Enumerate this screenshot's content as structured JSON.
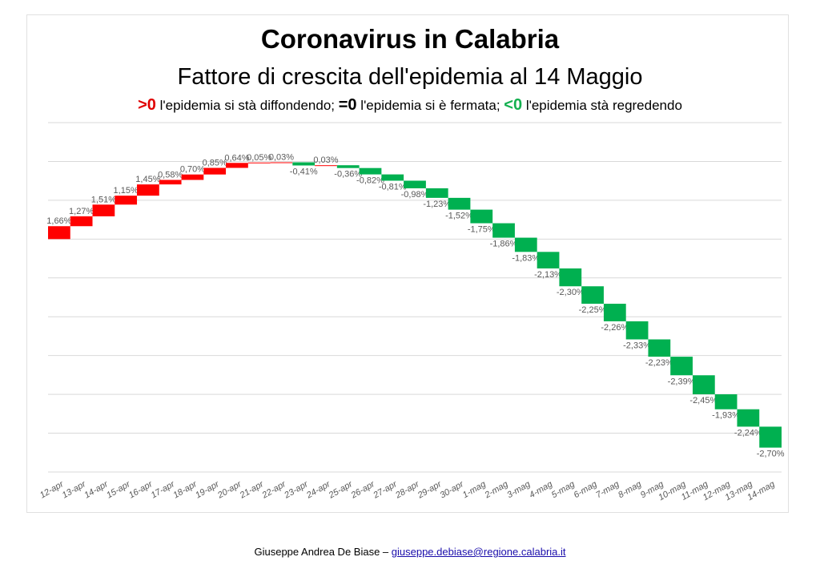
{
  "chart_data": {
    "type": "waterfall",
    "title": "Coronavirus in Calabria",
    "subtitle": "Fattore di crescita dell'epidemia al 14 Maggio",
    "legend": {
      "pos_sym": ">0",
      "pos_text": " l'epidemia si stà diffondendo; ",
      "zero_sym": "=0",
      "zero_text": " l'epidemia si è fermata; ",
      "neg_sym": "<0",
      "neg_text": " l'epidemia stà regredendo"
    },
    "categories": [
      "12-apr",
      "13-apr",
      "14-apr",
      "15-apr",
      "16-apr",
      "17-apr",
      "18-apr",
      "19-apr",
      "20-apr",
      "21-apr",
      "22-apr",
      "23-apr",
      "24-apr",
      "25-apr",
      "26-apr",
      "27-apr",
      "28-apr",
      "29-apr",
      "30-apr",
      "1-mag",
      "2-mag",
      "3-mag",
      "4-mag",
      "5-mag",
      "6-mag",
      "7-mag",
      "8-mag",
      "9-mag",
      "10-mag",
      "11-mag",
      "12-mag",
      "13-mag",
      "14-mag"
    ],
    "values": [
      1.66,
      1.27,
      1.51,
      1.15,
      1.45,
      0.58,
      0.7,
      0.85,
      0.64,
      0.05,
      0.03,
      -0.41,
      0.03,
      -0.36,
      -0.82,
      -0.81,
      -0.98,
      -1.23,
      -1.52,
      -1.75,
      -1.86,
      -1.83,
      -2.13,
      -2.3,
      -2.25,
      -2.26,
      -2.33,
      -2.23,
      -2.39,
      -2.45,
      -1.93,
      -2.24,
      -2.7
    ],
    "ylim": [
      -30,
      15
    ],
    "grid_step": 5,
    "grid": true,
    "colors": {
      "positive": "#ff0000",
      "negative": "#00b050"
    }
  },
  "footer": {
    "author": "Giuseppe Andrea De Biase – ",
    "email": "giuseppe.debiase@regione.calabria.it"
  }
}
